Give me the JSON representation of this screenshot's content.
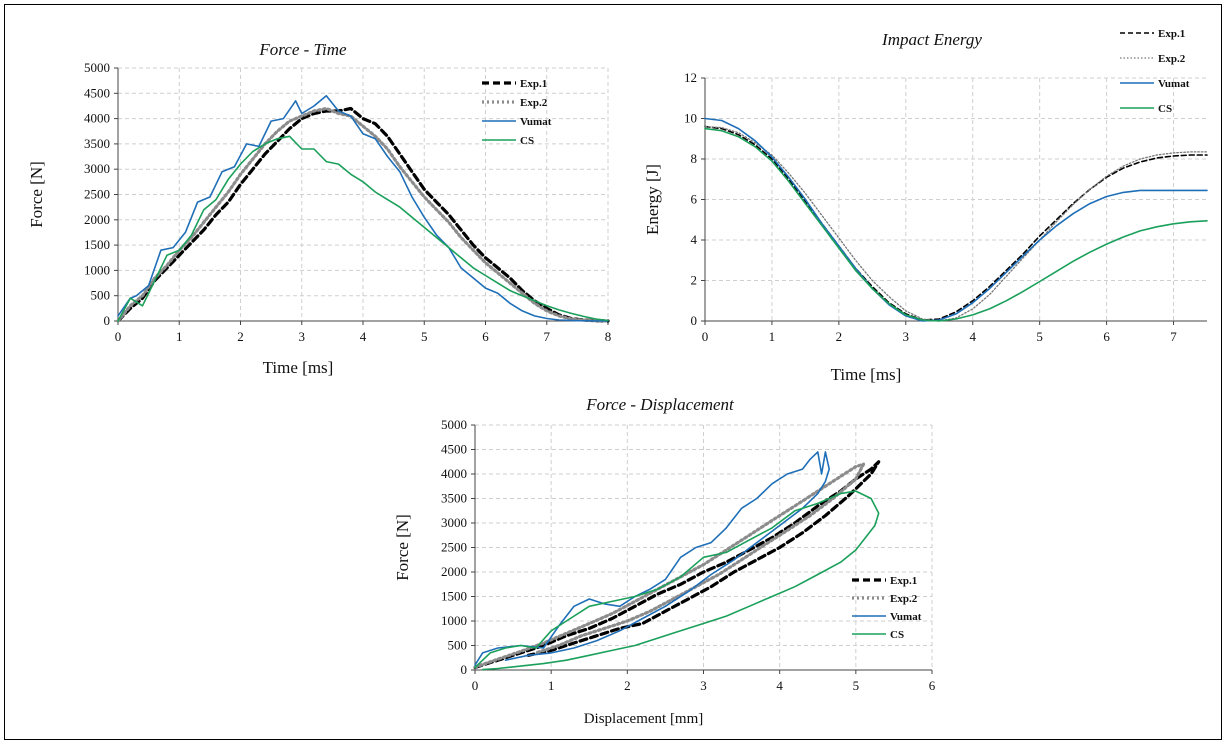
{
  "chart_data": [
    {
      "id": "force-time",
      "type": "line",
      "title": "Force - Time",
      "xlabel": "Time [ms]",
      "ylabel": "Force [N]",
      "xlim": [
        0,
        8
      ],
      "ylim": [
        0,
        5000
      ],
      "xticks": [
        0,
        1,
        2,
        3,
        4,
        5,
        6,
        7,
        8
      ],
      "yticks": [
        0,
        500,
        1000,
        1500,
        2000,
        2500,
        3000,
        3500,
        4000,
        4500,
        5000
      ],
      "grid": true,
      "legend_position": "top-right",
      "series": [
        {
          "name": "Exp.1",
          "color": "#000000",
          "style": "dashed-thick",
          "x": [
            0,
            0.2,
            0.4,
            0.6,
            0.8,
            1.0,
            1.2,
            1.4,
            1.6,
            1.8,
            2.0,
            2.2,
            2.4,
            2.6,
            2.8,
            3.0,
            3.2,
            3.4,
            3.6,
            3.8,
            4.0,
            4.2,
            4.4,
            4.6,
            4.8,
            5.0,
            5.2,
            5.4,
            5.6,
            5.8,
            6.0,
            6.2,
            6.4,
            6.6,
            6.8,
            7.0,
            7.2,
            7.4,
            7.6,
            7.8,
            8.0
          ],
          "y": [
            0,
            250,
            450,
            800,
            1050,
            1300,
            1550,
            1800,
            2100,
            2350,
            2700,
            3000,
            3300,
            3550,
            3800,
            4000,
            4100,
            4150,
            4150,
            4200,
            4000,
            3900,
            3650,
            3300,
            2950,
            2600,
            2350,
            2100,
            1800,
            1500,
            1250,
            1050,
            850,
            600,
            400,
            250,
            120,
            50,
            20,
            5,
            0
          ]
        },
        {
          "name": "Exp.2",
          "color": "#8c8c8c",
          "style": "dotted-thick",
          "x": [
            0,
            0.2,
            0.4,
            0.6,
            0.8,
            1.0,
            1.2,
            1.4,
            1.6,
            1.8,
            2.0,
            2.2,
            2.4,
            2.6,
            2.8,
            3.0,
            3.2,
            3.4,
            3.6,
            3.8,
            4.0,
            4.2,
            4.4,
            4.6,
            4.8,
            5.0,
            5.2,
            5.4,
            5.6,
            5.8,
            6.0,
            6.2,
            6.4,
            6.6,
            6.8,
            7.0,
            7.2,
            7.4,
            7.6,
            7.8,
            8.0
          ],
          "y": [
            0,
            300,
            500,
            850,
            1100,
            1400,
            1650,
            1950,
            2250,
            2550,
            2900,
            3200,
            3500,
            3750,
            3950,
            4050,
            4150,
            4200,
            4100,
            4050,
            3850,
            3650,
            3400,
            3050,
            2750,
            2450,
            2200,
            1950,
            1650,
            1400,
            1150,
            950,
            750,
            550,
            350,
            200,
            100,
            40,
            15,
            5,
            0
          ]
        },
        {
          "name": "Vumat",
          "color": "#1f6fb8",
          "style": "solid",
          "x": [
            0,
            0.2,
            0.3,
            0.5,
            0.7,
            0.9,
            1.1,
            1.3,
            1.5,
            1.7,
            1.9,
            2.1,
            2.3,
            2.5,
            2.7,
            2.9,
            3.0,
            3.2,
            3.4,
            3.6,
            3.8,
            4.0,
            4.2,
            4.4,
            4.6,
            4.8,
            5.0,
            5.2,
            5.4,
            5.6,
            5.8,
            6.0,
            6.2,
            6.4,
            6.6,
            6.8,
            7.0,
            7.2,
            7.5,
            8.0
          ],
          "y": [
            100,
            450,
            500,
            700,
            1400,
            1450,
            1750,
            2350,
            2450,
            2950,
            3050,
            3500,
            3450,
            3950,
            4000,
            4350,
            4100,
            4250,
            4450,
            4150,
            4050,
            3700,
            3600,
            3250,
            2950,
            2450,
            2050,
            1700,
            1450,
            1050,
            850,
            650,
            550,
            350,
            200,
            100,
            50,
            20,
            5,
            0
          ]
        },
        {
          "name": "CS",
          "color": "#1aa05a",
          "style": "solid",
          "x": [
            0,
            0.2,
            0.4,
            0.6,
            0.8,
            1.0,
            1.2,
            1.4,
            1.6,
            1.8,
            2.0,
            2.2,
            2.4,
            2.6,
            2.8,
            3.0,
            3.2,
            3.4,
            3.6,
            3.8,
            4.0,
            4.2,
            4.4,
            4.6,
            4.8,
            5.0,
            5.2,
            5.4,
            5.6,
            5.8,
            6.0,
            6.2,
            6.4,
            6.6,
            6.8,
            7.0,
            7.2,
            7.4,
            7.6,
            7.8,
            8.0
          ],
          "y": [
            0,
            450,
            300,
            800,
            1300,
            1400,
            1700,
            2200,
            2400,
            2800,
            3100,
            3350,
            3500,
            3600,
            3650,
            3400,
            3400,
            3150,
            3100,
            2900,
            2750,
            2550,
            2400,
            2250,
            2050,
            1850,
            1650,
            1450,
            1250,
            1050,
            900,
            750,
            600,
            500,
            400,
            300,
            220,
            150,
            90,
            40,
            10
          ]
        }
      ]
    },
    {
      "id": "impact-energy",
      "type": "line",
      "title": "Impact Energy",
      "xlabel": "Time [ms]",
      "ylabel": "Energy [J]",
      "xlim": [
        0,
        7.5
      ],
      "ylim": [
        0,
        12
      ],
      "xticks": [
        0,
        1,
        2,
        3,
        4,
        5,
        6,
        7
      ],
      "yticks": [
        0,
        2,
        4,
        6,
        8,
        10,
        12
      ],
      "grid": true,
      "legend_position": "top-right",
      "series": [
        {
          "name": "Exp.1",
          "color": "#000000",
          "style": "dashed",
          "x": [
            0,
            0.25,
            0.5,
            0.75,
            1.0,
            1.25,
            1.5,
            1.75,
            2.0,
            2.25,
            2.5,
            2.75,
            3.0,
            3.25,
            3.5,
            3.75,
            4.0,
            4.25,
            4.5,
            4.75,
            5.0,
            5.25,
            5.5,
            5.75,
            6.0,
            6.25,
            6.5,
            6.75,
            7.0,
            7.25,
            7.5
          ],
          "y": [
            9.6,
            9.5,
            9.2,
            8.7,
            8.0,
            7.0,
            5.9,
            4.8,
            3.7,
            2.6,
            1.7,
            0.9,
            0.35,
            0.05,
            0.1,
            0.45,
            1.0,
            1.7,
            2.5,
            3.3,
            4.2,
            5.0,
            5.8,
            6.5,
            7.1,
            7.55,
            7.85,
            8.05,
            8.15,
            8.2,
            8.2
          ]
        },
        {
          "name": "Exp.2",
          "color": "#777777",
          "style": "dotted",
          "x": [
            0,
            0.25,
            0.5,
            0.75,
            1.0,
            1.25,
            1.5,
            1.75,
            2.0,
            2.25,
            2.5,
            2.75,
            3.0,
            3.25,
            3.5,
            3.75,
            4.0,
            4.25,
            4.5,
            4.75,
            5.0,
            5.25,
            5.5,
            5.75,
            6.0,
            6.25,
            6.5,
            6.75,
            7.0,
            7.25,
            7.5
          ],
          "y": [
            9.6,
            9.55,
            9.3,
            8.8,
            8.2,
            7.3,
            6.3,
            5.2,
            4.1,
            3.0,
            2.0,
            1.2,
            0.5,
            0.1,
            0.0,
            0.15,
            0.6,
            1.3,
            2.2,
            3.1,
            4.0,
            4.9,
            5.75,
            6.5,
            7.15,
            7.65,
            8.0,
            8.2,
            8.3,
            8.35,
            8.35
          ]
        },
        {
          "name": "Vumat",
          "color": "#1f6fb8",
          "style": "solid",
          "x": [
            0,
            0.25,
            0.5,
            0.75,
            1.0,
            1.25,
            1.5,
            1.75,
            2.0,
            2.25,
            2.5,
            2.75,
            3.0,
            3.25,
            3.5,
            3.75,
            4.0,
            4.25,
            4.5,
            4.75,
            5.0,
            5.25,
            5.5,
            5.75,
            6.0,
            6.25,
            6.5,
            6.75,
            7.0,
            7.25,
            7.5
          ],
          "y": [
            10.0,
            9.9,
            9.5,
            8.9,
            8.1,
            7.1,
            6.0,
            4.8,
            3.7,
            2.6,
            1.6,
            0.8,
            0.25,
            0.0,
            0.05,
            0.35,
            0.9,
            1.6,
            2.4,
            3.2,
            4.0,
            4.7,
            5.3,
            5.8,
            6.15,
            6.35,
            6.45,
            6.45,
            6.45,
            6.45,
            6.45
          ]
        },
        {
          "name": "CS",
          "color": "#1aa05a",
          "style": "solid",
          "x": [
            0,
            0.25,
            0.5,
            0.75,
            1.0,
            1.25,
            1.5,
            1.75,
            2.0,
            2.25,
            2.5,
            2.75,
            3.0,
            3.25,
            3.5,
            3.75,
            4.0,
            4.25,
            4.5,
            4.75,
            5.0,
            5.25,
            5.5,
            5.75,
            6.0,
            6.25,
            6.5,
            6.75,
            7.0,
            7.25,
            7.5
          ],
          "y": [
            9.5,
            9.4,
            9.1,
            8.6,
            7.9,
            6.9,
            5.8,
            4.7,
            3.6,
            2.5,
            1.6,
            0.85,
            0.3,
            0.05,
            0.0,
            0.1,
            0.3,
            0.6,
            1.0,
            1.45,
            1.95,
            2.45,
            2.95,
            3.4,
            3.8,
            4.15,
            4.45,
            4.65,
            4.8,
            4.9,
            4.95
          ]
        }
      ]
    },
    {
      "id": "force-displacement",
      "type": "line",
      "title": "Force - Displacement",
      "xlabel": "Displacement [mm]",
      "ylabel": "Force [N]",
      "xlim": [
        0,
        6
      ],
      "ylim": [
        0,
        5000
      ],
      "xticks": [
        0,
        1,
        2,
        3,
        4,
        5,
        6
      ],
      "yticks": [
        0,
        500,
        1000,
        1500,
        2000,
        2500,
        3000,
        3500,
        4000,
        4500,
        5000
      ],
      "grid": true,
      "legend_position": "bottom-right",
      "series": [
        {
          "name": "Exp.1",
          "color": "#000000",
          "style": "dashed-thick",
          "x": [
            0,
            0.3,
            0.6,
            0.9,
            1.2,
            1.5,
            1.8,
            2.1,
            2.4,
            2.7,
            3.0,
            3.3,
            3.6,
            3.9,
            4.2,
            4.5,
            4.8,
            5.0,
            5.2,
            5.3,
            5.2,
            4.9,
            4.6,
            4.3,
            4.0,
            3.7,
            3.4,
            3.1,
            2.8,
            2.5,
            2.2,
            1.9,
            1.6,
            1.3,
            1.0,
            0.7
          ],
          "y": [
            50,
            200,
            350,
            500,
            700,
            850,
            1050,
            1300,
            1550,
            1750,
            2000,
            2200,
            2450,
            2700,
            3000,
            3350,
            3650,
            3900,
            4100,
            4250,
            4000,
            3550,
            3150,
            2800,
            2500,
            2250,
            2000,
            1700,
            1450,
            1200,
            950,
            850,
            700,
            550,
            400,
            300
          ]
        },
        {
          "name": "Exp.2",
          "color": "#8c8c8c",
          "style": "dotted-thick",
          "x": [
            0,
            0.3,
            0.6,
            0.9,
            1.2,
            1.5,
            1.8,
            2.1,
            2.4,
            2.7,
            3.0,
            3.3,
            3.6,
            3.9,
            4.2,
            4.5,
            4.8,
            5.0,
            5.1,
            5.0,
            4.7,
            4.4,
            4.1,
            3.8,
            3.5,
            3.2,
            2.9,
            2.6,
            2.3,
            2.0,
            1.7,
            1.4,
            1.1,
            0.8
          ],
          "y": [
            60,
            220,
            380,
            550,
            750,
            950,
            1150,
            1400,
            1650,
            1900,
            2150,
            2450,
            2750,
            3050,
            3350,
            3650,
            3950,
            4150,
            4200,
            3900,
            3500,
            3150,
            2850,
            2550,
            2250,
            1950,
            1700,
            1450,
            1200,
            1000,
            850,
            700,
            500,
            350
          ]
        },
        {
          "name": "Vumat",
          "color": "#1f6fb8",
          "style": "solid",
          "x": [
            0,
            0.1,
            0.3,
            0.6,
            0.9,
            1.1,
            1.3,
            1.5,
            1.7,
            1.9,
            2.1,
            2.3,
            2.5,
            2.7,
            2.9,
            3.1,
            3.3,
            3.5,
            3.7,
            3.9,
            4.1,
            4.3,
            4.4,
            4.5,
            4.55,
            4.6,
            4.65,
            4.6,
            4.5,
            4.3,
            4.0,
            3.7,
            3.4,
            3.1,
            2.8,
            2.5,
            2.2,
            1.9,
            1.6,
            1.3,
            1.0,
            0.7,
            0.4
          ],
          "y": [
            100,
            350,
            450,
            500,
            450,
            900,
            1300,
            1450,
            1350,
            1300,
            1500,
            1650,
            1850,
            2300,
            2500,
            2600,
            2900,
            3300,
            3500,
            3800,
            4000,
            4100,
            4300,
            4450,
            4000,
            4450,
            4100,
            3850,
            3600,
            3300,
            2950,
            2600,
            2250,
            1950,
            1600,
            1300,
            1050,
            800,
            600,
            450,
            350,
            300,
            200
          ]
        },
        {
          "name": "CS",
          "color": "#1aa05a",
          "style": "solid",
          "x": [
            0,
            0.2,
            0.4,
            0.6,
            0.8,
            1.0,
            1.2,
            1.5,
            1.8,
            2.1,
            2.4,
            2.7,
            3.0,
            3.3,
            3.6,
            3.9,
            4.2,
            4.5,
            4.8,
            5.0,
            5.2,
            5.3,
            5.25,
            5.15,
            5.0,
            4.8,
            4.5,
            4.2,
            3.9,
            3.6,
            3.3,
            3.0,
            2.7,
            2.4,
            2.1,
            1.8,
            1.5,
            1.2,
            0.9,
            0.6,
            0.3,
            0.1
          ],
          "y": [
            50,
            350,
            450,
            500,
            450,
            800,
            1000,
            1300,
            1400,
            1500,
            1650,
            1900,
            2300,
            2400,
            2650,
            2900,
            3250,
            3400,
            3600,
            3650,
            3500,
            3200,
            2950,
            2750,
            2450,
            2200,
            1950,
            1700,
            1500,
            1300,
            1100,
            950,
            800,
            650,
            500,
            400,
            300,
            200,
            130,
            80,
            30,
            10
          ]
        }
      ]
    }
  ]
}
